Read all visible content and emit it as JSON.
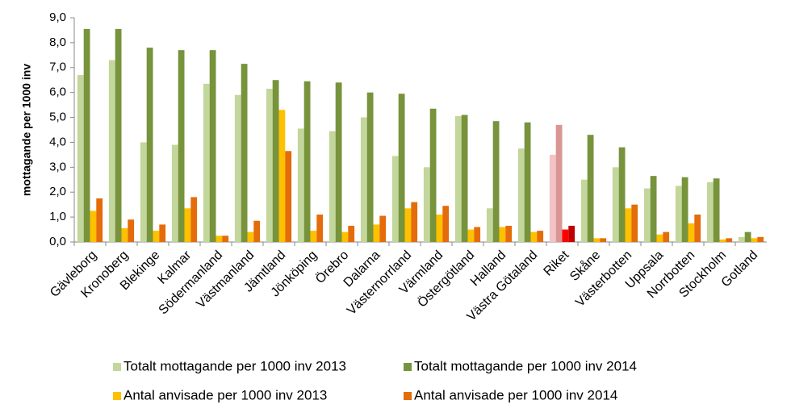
{
  "chart_data": {
    "type": "bar",
    "y_label": "mottagande per 1000 inv",
    "categories": [
      "Gävleborg",
      "Kronoberg",
      "Blekinge",
      "Kalmar",
      "Södermanland",
      "Västmanland",
      "Jämtland",
      "Jönköping",
      "Örebro",
      "Dalarna",
      "Västernorrland",
      "Värmland",
      "Östergötland",
      "Halland",
      "Västra Götaland",
      "Riket",
      "Skåne",
      "Västerbotten",
      "Uppsala",
      "Norrbotten",
      "Stockholm",
      "Gotland"
    ],
    "series": [
      {
        "name": "Totalt mottagande per 1000 inv 2013",
        "color": "#c3d69b",
        "highlight_color": "#f2c4c4",
        "values": [
          6.7,
          7.3,
          4.0,
          3.9,
          6.35,
          5.9,
          6.15,
          4.55,
          4.45,
          5.0,
          3.45,
          3.0,
          5.05,
          1.35,
          3.75,
          3.5,
          2.5,
          3.0,
          2.15,
          2.25,
          2.4,
          0.2
        ]
      },
      {
        "name": "Totalt mottagande per 1000 inv 2014",
        "color": "#77933c",
        "highlight_color": "#da9694",
        "values": [
          8.55,
          8.55,
          7.8,
          7.7,
          7.7,
          7.15,
          6.5,
          6.45,
          6.4,
          6.0,
          5.95,
          5.35,
          5.1,
          4.85,
          4.8,
          4.7,
          4.3,
          3.8,
          2.65,
          2.6,
          2.55,
          0.4
        ]
      },
      {
        "name": "Antal anvisade per 1000 inv 2013",
        "color": "#ffc000",
        "highlight_color": "#ff0000",
        "values": [
          1.25,
          0.55,
          0.45,
          1.35,
          0.25,
          0.4,
          5.3,
          0.45,
          0.4,
          0.7,
          1.35,
          1.1,
          0.5,
          0.6,
          0.4,
          0.5,
          0.15,
          1.35,
          0.3,
          0.75,
          0.1,
          0.15
        ]
      },
      {
        "name": "Antal anvisade per 1000 inv 2014",
        "color": "#e46c0a",
        "highlight_color": "#c00000",
        "values": [
          1.75,
          0.9,
          0.7,
          1.8,
          0.25,
          0.85,
          3.65,
          1.1,
          0.65,
          1.05,
          1.6,
          1.45,
          0.6,
          0.65,
          0.45,
          0.65,
          0.15,
          1.5,
          0.4,
          1.1,
          0.15,
          0.2
        ]
      }
    ],
    "highlight_category": "Riket",
    "ylim": [
      0,
      9
    ],
    "yticks": [
      {
        "value": 0,
        "label": "0,0"
      },
      {
        "value": 1,
        "label": "1,0"
      },
      {
        "value": 2,
        "label": "2,0"
      },
      {
        "value": 3,
        "label": "3,0"
      },
      {
        "value": 4,
        "label": "4,0"
      },
      {
        "value": 5,
        "label": "5,0"
      },
      {
        "value": 6,
        "label": "6,0"
      },
      {
        "value": 7,
        "label": "7,0"
      },
      {
        "value": 8,
        "label": "8,0"
      },
      {
        "value": 9,
        "label": "9,0"
      }
    ],
    "grid": false
  }
}
